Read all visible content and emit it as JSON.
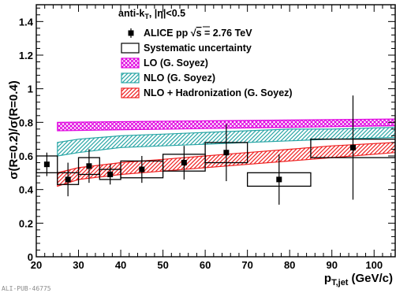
{
  "chart_data": {
    "type": "scatter",
    "title": "",
    "ylabel": "σ(R=0.2)/σ(R=0.4)",
    "xlabel_main": "p",
    "xlabel_sub": "T,jet",
    "xlabel_unit": "(GeV/c)",
    "xlim": [
      20,
      105
    ],
    "ylim": [
      0,
      1.5
    ],
    "x_ticks": [
      20,
      30,
      40,
      50,
      60,
      70,
      80,
      90,
      100
    ],
    "y_ticks": [
      0,
      0.2,
      0.4,
      0.6,
      0.8,
      1.0,
      1.2,
      1.4
    ],
    "y_tick_labels": [
      "0",
      "0.2",
      "0.4",
      "0.6",
      "0.8",
      "1",
      "1.2",
      "1.4"
    ],
    "grid": false,
    "legend_placement": "top-center",
    "header": {
      "prefix": "anti-k",
      "sub": "T",
      "suffix": ", |η|<0.5"
    },
    "series": [
      {
        "name": "ALICE pp √s = 2.76 TeV",
        "name_prefix": "ALICE pp ",
        "name_root": "√",
        "name_root_arg": "s",
        "name_suffix": " = 2.76 TeV",
        "kind": "points",
        "color": "#000000",
        "points": [
          {
            "x": 22.5,
            "y": 0.55,
            "err_lo": 0.07,
            "err_hi": 0.07
          },
          {
            "x": 27.5,
            "y": 0.46,
            "err_lo": 0.1,
            "err_hi": 0.1
          },
          {
            "x": 32.5,
            "y": 0.54,
            "err_lo": 0.1,
            "err_hi": 0.1
          },
          {
            "x": 37.5,
            "y": 0.49,
            "err_lo": 0.06,
            "err_hi": 0.06
          },
          {
            "x": 45.0,
            "y": 0.52,
            "err_lo": 0.08,
            "err_hi": 0.08
          },
          {
            "x": 55.0,
            "y": 0.56,
            "err_lo": 0.1,
            "err_hi": 0.1
          },
          {
            "x": 65.0,
            "y": 0.62,
            "err_lo": 0.17,
            "err_hi": 0.17
          },
          {
            "x": 77.5,
            "y": 0.46,
            "err_lo": 0.15,
            "err_hi": 0.15
          },
          {
            "x": 95.0,
            "y": 0.65,
            "err_lo": 0.31,
            "err_hi": 0.31
          }
        ]
      },
      {
        "name": "Systematic uncertainty",
        "kind": "boxes",
        "color": "#000000",
        "boxes": [
          {
            "x0": 20,
            "x1": 25,
            "y0": 0.5,
            "y1": 0.6
          },
          {
            "x0": 25,
            "x1": 30,
            "y0": 0.43,
            "y1": 0.5
          },
          {
            "x0": 30,
            "x1": 35,
            "y0": 0.49,
            "y1": 0.59
          },
          {
            "x0": 35,
            "x1": 40,
            "y0": 0.46,
            "y1": 0.52
          },
          {
            "x0": 40,
            "x1": 50,
            "y0": 0.47,
            "y1": 0.57
          },
          {
            "x0": 50,
            "x1": 60,
            "y0": 0.51,
            "y1": 0.61
          },
          {
            "x0": 60,
            "x1": 70,
            "y0": 0.56,
            "y1": 0.68
          },
          {
            "x0": 70,
            "x1": 85,
            "y0": 0.42,
            "y1": 0.5
          },
          {
            "x0": 85,
            "x1": 105,
            "y0": 0.59,
            "y1": 0.7
          }
        ]
      },
      {
        "name": "LO (G. Soyez)",
        "kind": "band",
        "color": "#e000e0",
        "pattern": "crosshatch",
        "x": [
          25,
          105
        ],
        "y_lo": [
          0.75,
          0.78
        ],
        "y_hi": [
          0.8,
          0.82
        ]
      },
      {
        "name": "NLO (G. Soyez)",
        "kind": "band",
        "color": "#2aa6a6",
        "pattern": "hatch",
        "x": [
          25,
          30,
          40,
          50,
          60,
          70,
          80,
          90,
          105
        ],
        "y_lo": [
          0.6,
          0.62,
          0.65,
          0.66,
          0.67,
          0.68,
          0.69,
          0.7,
          0.71
        ],
        "y_hi": [
          0.68,
          0.7,
          0.72,
          0.73,
          0.74,
          0.75,
          0.76,
          0.76,
          0.77
        ]
      },
      {
        "name": "NLO + Hadronization (G. Soyez)",
        "kind": "band",
        "color": "#ee2222",
        "pattern": "hatch",
        "x": [
          25,
          30,
          40,
          50,
          60,
          70,
          80,
          90,
          105
        ],
        "y_lo": [
          0.42,
          0.46,
          0.49,
          0.51,
          0.53,
          0.55,
          0.57,
          0.59,
          0.62
        ],
        "y_hi": [
          0.5,
          0.53,
          0.56,
          0.58,
          0.6,
          0.62,
          0.64,
          0.66,
          0.68
        ]
      }
    ]
  },
  "footer": "ALI-PUB-46775"
}
